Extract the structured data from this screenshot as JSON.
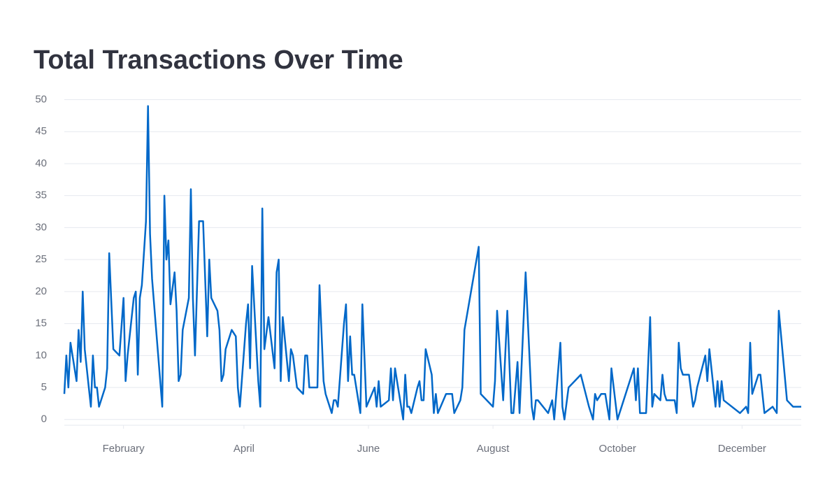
{
  "chart_data": {
    "type": "line",
    "title": "Total Transactions Over Time",
    "x": [
      1,
      2,
      3,
      4,
      7,
      8,
      9,
      10,
      11,
      13,
      14,
      15,
      16,
      17,
      18,
      21,
      22,
      23,
      25,
      28,
      30,
      31,
      32,
      35,
      36,
      37,
      38,
      39,
      41,
      42,
      43,
      44,
      49,
      50,
      51,
      52,
      53,
      55,
      56,
      57,
      58,
      59,
      62,
      63,
      64,
      65,
      67,
      69,
      71,
      72,
      73,
      76,
      77,
      78,
      79,
      80,
      83,
      85,
      86,
      87,
      90,
      91,
      92,
      93,
      96,
      97,
      98,
      99,
      101,
      104,
      105,
      106,
      107,
      108,
      111,
      112,
      113,
      115,
      118,
      119,
      120,
      121,
      125,
      126,
      128,
      129,
      132,
      133,
      134,
      135,
      138,
      139,
      140,
      141,
      142,
      143,
      146,
      147,
      149,
      153,
      154,
      155,
      156,
      160,
      161,
      162,
      163,
      164,
      167,
      168,
      169,
      170,
      171,
      174,
      175,
      176,
      177,
      178,
      181,
      182,
      183,
      184,
      188,
      191,
      192,
      195,
      196,
      197,
      204,
      205,
      211,
      212,
      213,
      216,
      217,
      218,
      220,
      221,
      223,
      224,
      227,
      230,
      231,
      232,
      233,
      238,
      240,
      241,
      244,
      245,
      246,
      248,
      254,
      258,
      260,
      261,
      262,
      264,
      266,
      267,
      268,
      269,
      272,
      280,
      281,
      282,
      283,
      286,
      288,
      289,
      290,
      293,
      294,
      295,
      296,
      299,
      300,
      301,
      302,
      303,
      304,
      307,
      309,
      310,
      311,
      315,
      316,
      317,
      320,
      321,
      322,
      323,
      324,
      332,
      335,
      336,
      337,
      338,
      341,
      342,
      344,
      348,
      350,
      351,
      355,
      358,
      362
    ],
    "series": [
      {
        "name": "Total Transactions",
        "color": "#0068c9",
        "values": [
          4,
          10,
          5,
          12,
          6,
          14,
          9,
          20,
          11,
          5,
          2,
          10,
          5,
          5,
          2,
          5,
          8,
          26,
          11,
          10,
          19,
          6,
          10,
          19,
          20,
          7,
          19,
          21,
          31,
          49,
          29,
          22,
          2,
          35,
          25,
          28,
          18,
          23,
          17,
          6,
          7,
          14,
          19,
          36,
          19,
          10,
          31,
          31,
          13,
          25,
          19,
          17,
          14,
          6,
          7,
          11,
          14,
          13,
          5,
          2,
          15,
          18,
          8,
          24,
          6,
          2,
          33,
          11,
          16,
          8,
          23,
          25,
          6,
          16,
          6,
          11,
          10,
          5,
          4,
          10,
          10,
          5,
          5,
          21,
          6,
          4,
          1,
          3,
          3,
          2,
          15,
          18,
          6,
          13,
          7,
          7,
          1,
          18,
          2,
          5,
          2,
          6,
          2,
          3,
          8,
          3,
          8,
          6,
          0,
          7,
          2,
          2,
          1,
          5,
          6,
          3,
          3,
          11,
          7,
          1,
          4,
          1,
          4,
          4,
          1,
          3,
          5,
          14,
          27,
          4,
          2,
          6,
          17,
          3,
          10,
          17,
          1,
          1,
          9,
          1,
          23,
          2,
          0,
          3,
          3,
          1,
          3,
          0,
          12,
          2,
          0,
          5,
          7,
          2,
          0,
          4,
          3,
          4,
          4,
          2,
          0,
          8,
          0,
          8,
          3,
          8,
          1,
          1,
          16,
          2,
          4,
          3,
          7,
          4,
          3,
          3,
          3,
          1,
          12,
          8,
          7,
          7,
          2,
          3,
          5,
          10,
          6,
          11,
          2,
          6,
          2,
          6,
          3,
          1,
          2,
          1,
          12,
          4,
          7,
          7,
          1,
          2,
          1,
          17,
          3,
          2,
          2
        ]
      }
    ],
    "xlim": [
      1,
      362
    ],
    "xticks": [
      {
        "value": 30,
        "label": "February"
      },
      {
        "value": 89,
        "label": "April"
      },
      {
        "value": 150,
        "label": "June"
      },
      {
        "value": 211,
        "label": "August"
      },
      {
        "value": 272,
        "label": "October"
      },
      {
        "value": 333,
        "label": "December"
      }
    ],
    "ylim": [
      -0.9,
      50.6
    ],
    "yticks": [
      0,
      5,
      10,
      15,
      20,
      25,
      30,
      35,
      40,
      45,
      50
    ],
    "grid": true
  }
}
